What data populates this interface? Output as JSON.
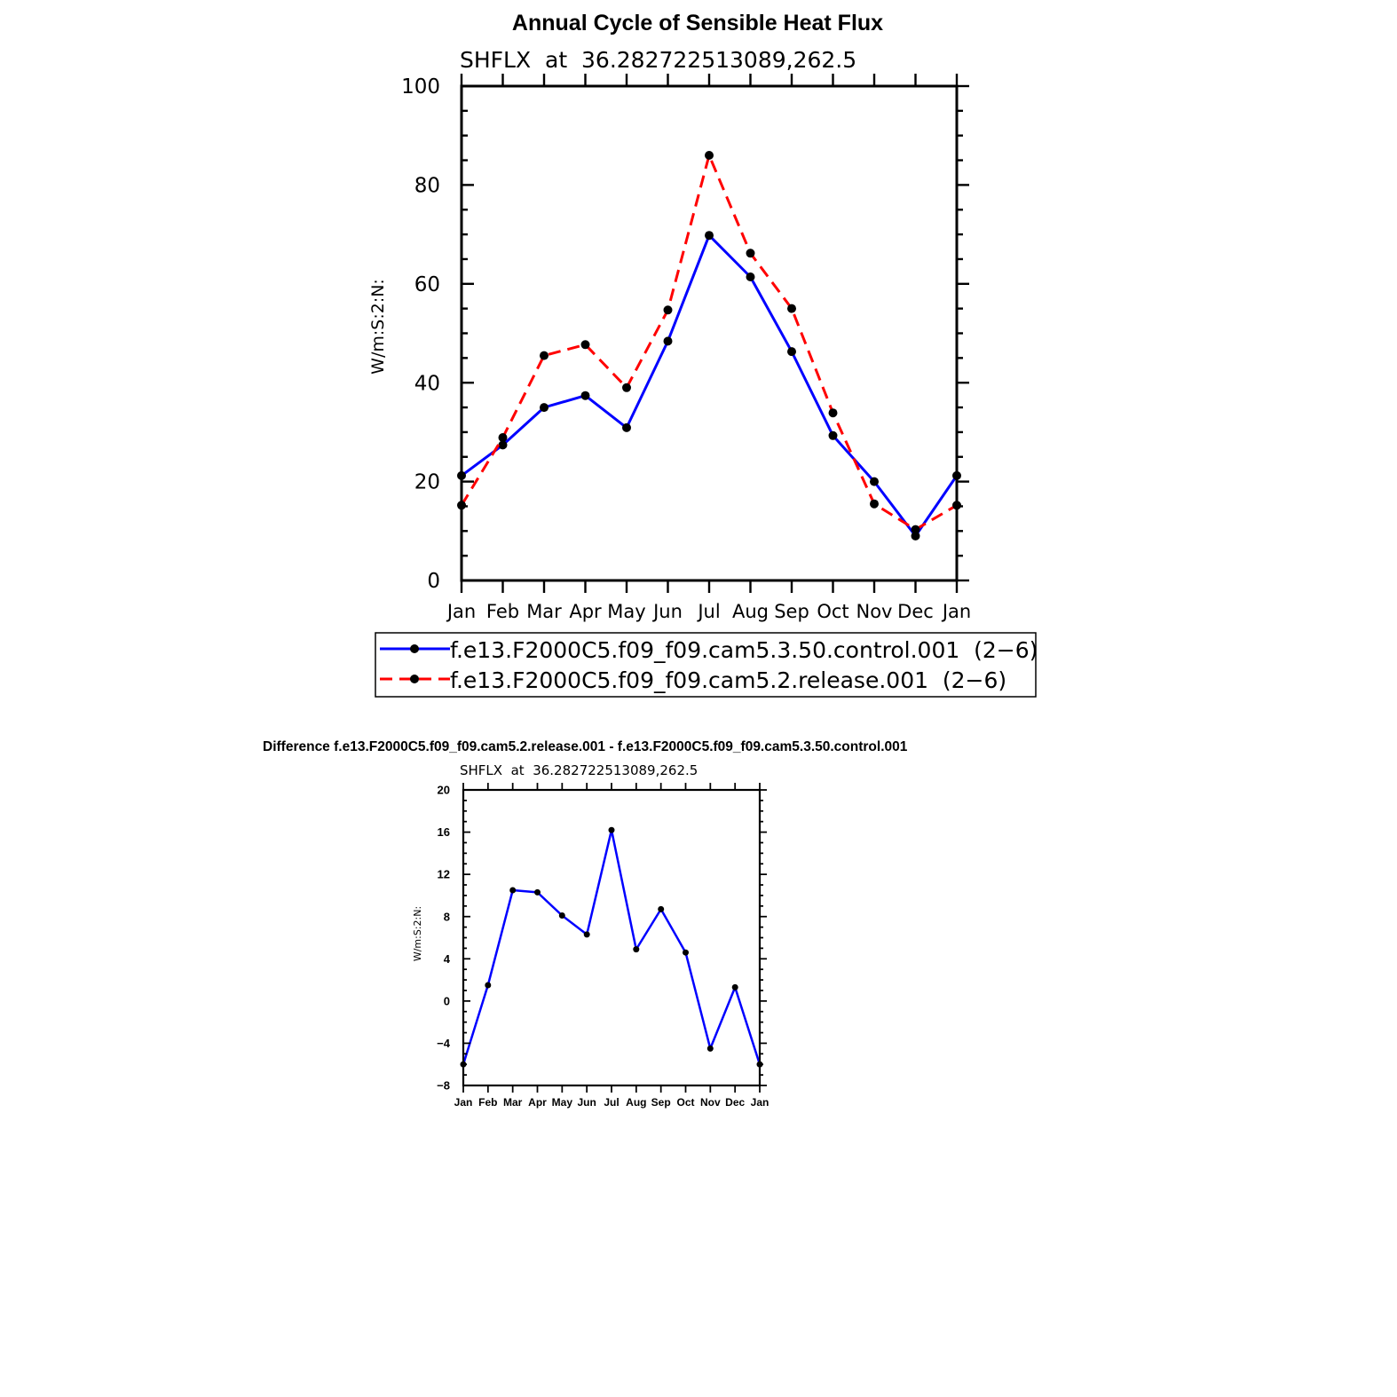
{
  "colors": {
    "control": "#0000ff",
    "release": "#ff0000",
    "diff": "#0000ff",
    "axis": "#000000"
  },
  "chart_data": [
    {
      "type": "line",
      "title": "Annual Cycle of Sensible Heat Flux",
      "subtitle": "SHFLX  at  36.282722513089,262.5",
      "xlabel": "",
      "ylabel": "W/m:S:2:N:",
      "ylim": [
        0,
        100
      ],
      "yticks": [
        "0",
        "20",
        "40",
        "60",
        "80",
        "100"
      ],
      "categories": [
        "Jan",
        "Feb",
        "Mar",
        "Apr",
        "May",
        "Jun",
        "Jul",
        "Aug",
        "Sep",
        "Oct",
        "Nov",
        "Dec",
        "Jan"
      ],
      "grid": false,
      "legend_position": "bottom",
      "series": [
        {
          "name": "f.e13.F2000C5.f09_f09.cam5.3.50.control.001  (2−6)",
          "style": "solid",
          "values": [
            21.2,
            27.4,
            35.0,
            37.4,
            30.9,
            48.4,
            69.8,
            61.4,
            46.3,
            29.3,
            20.0,
            9.0,
            21.2
          ]
        },
        {
          "name": "f.e13.F2000C5.f09_f09.cam5.2.release.001  (2−6)",
          "style": "dashed",
          "values": [
            15.2,
            28.9,
            45.5,
            47.7,
            39.0,
            54.7,
            86.0,
            66.2,
            55.0,
            33.9,
            15.5,
            10.3,
            15.2
          ]
        }
      ]
    },
    {
      "type": "line",
      "title": "Difference f.e13.F2000C5.f09_f09.cam5.2.release.001 - f.e13.F2000C5.f09_f09.cam5.3.50.control.001",
      "subtitle": "SHFLX  at  36.282722513089,262.5",
      "xlabel": "",
      "ylabel": "W/m:S:2:N:",
      "ylim": [
        -8,
        20
      ],
      "yticks": [
        "−8",
        "−4",
        "0",
        "4",
        "8",
        "12",
        "16",
        "20"
      ],
      "categories": [
        "Jan",
        "Feb",
        "Mar",
        "Apr",
        "May",
        "Jun",
        "Jul",
        "Aug",
        "Sep",
        "Oct",
        "Nov",
        "Dec",
        "Jan"
      ],
      "grid": false,
      "series": [
        {
          "name": "difference",
          "style": "solid",
          "values": [
            -6.0,
            1.5,
            10.5,
            10.3,
            8.1,
            6.3,
            16.2,
            4.9,
            8.7,
            4.6,
            -4.5,
            1.3,
            -6.0
          ]
        }
      ]
    }
  ]
}
